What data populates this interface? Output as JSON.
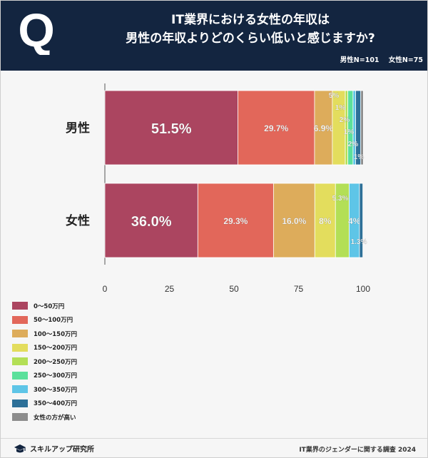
{
  "header": {
    "logo_letter": "Q",
    "title_line1": "IT業界における女性の年収は",
    "title_line2": "男性の年収よりどのくらい低いと感じますか?",
    "sample_male": "男性N=101",
    "sample_female": "女性N=75",
    "colors": {
      "background": "#132540",
      "text": "#ffffff"
    }
  },
  "chart_data": {
    "type": "bar",
    "orientation": "horizontal",
    "stacked": true,
    "categories": [
      "男性",
      "女性"
    ],
    "xlim": [
      0,
      100
    ],
    "xticks": [
      "0",
      "25",
      "50",
      "75",
      "100"
    ],
    "series": [
      {
        "name": "0〜50万円",
        "color": "#ab4560",
        "values": [
          51.5,
          36.0
        ],
        "labels": [
          "51.5%",
          "36.0%"
        ]
      },
      {
        "name": "50〜100万円",
        "color": "#e2675a",
        "values": [
          29.7,
          29.3
        ],
        "labels": [
          "29.7%",
          "29.3%"
        ]
      },
      {
        "name": "100〜150万円",
        "color": "#ddac5b",
        "values": [
          6.9,
          16.0
        ],
        "labels": [
          "6.9%",
          "16.0%"
        ]
      },
      {
        "name": "150〜200万円",
        "color": "#e3dd5d",
        "values": [
          5,
          8
        ],
        "labels": [
          "5%",
          "8%"
        ]
      },
      {
        "name": "200〜250万円",
        "color": "#b3df56",
        "values": [
          1,
          5.3
        ],
        "labels": [
          "1%",
          "5.3%"
        ]
      },
      {
        "name": "250〜300万円",
        "color": "#5be09b",
        "values": [
          2,
          0
        ],
        "labels": [
          "2%",
          ""
        ]
      },
      {
        "name": "300〜350万円",
        "color": "#5ec5e7",
        "values": [
          1,
          4
        ],
        "labels": [
          "1%",
          "4%"
        ]
      },
      {
        "name": "350〜400万円",
        "color": "#2d7098",
        "values": [
          2,
          1.3
        ],
        "labels": [
          "2%",
          "1.3%"
        ]
      },
      {
        "name": "女性の方が高い",
        "color": "#8c8c8c",
        "values": [
          1,
          0
        ],
        "labels": [
          "1%",
          ""
        ]
      }
    ]
  },
  "footer": {
    "brand": "スキルアップ研究所",
    "source": "IT業界のジェンダーに関する調査 2024"
  }
}
